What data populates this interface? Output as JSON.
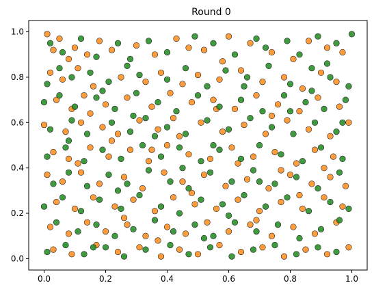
{
  "chart_data": {
    "type": "scatter",
    "title": "Round 0",
    "xlabel": "",
    "ylabel": "",
    "xlim": [
      -0.05,
      1.05
    ],
    "ylim": [
      -0.05,
      1.05
    ],
    "xticks": [
      "0.0",
      "0.2",
      "0.4",
      "0.6",
      "0.8",
      "1.0"
    ],
    "yticks": [
      "0.0",
      "0.2",
      "0.4",
      "0.6",
      "0.8",
      "1.0"
    ],
    "grid": false,
    "legend": false,
    "series": [
      {
        "color": "#ff8c1a",
        "points": [
          [
            0.01,
            0.99
          ],
          [
            0.03,
            0.92
          ],
          [
            0.05,
            0.97
          ],
          [
            0.08,
            0.88
          ],
          [
            0.1,
            0.93
          ],
          [
            0.14,
            0.9
          ],
          [
            0.18,
            0.96
          ],
          [
            0.22,
            0.92
          ],
          [
            0.3,
            0.94
          ],
          [
            0.36,
            0.9
          ],
          [
            0.43,
            0.97
          ],
          [
            0.47,
            0.93
          ],
          [
            0.52,
            0.92
          ],
          [
            0.6,
            0.98
          ],
          [
            0.67,
            0.95
          ],
          [
            0.74,
            0.91
          ],
          [
            0.81,
            0.88
          ],
          [
            0.86,
            0.96
          ],
          [
            0.92,
            0.93
          ],
          [
            0.97,
            0.91
          ],
          [
            0.02,
            0.82
          ],
          [
            0.06,
            0.79
          ],
          [
            0.11,
            0.84
          ],
          [
            0.16,
            0.76
          ],
          [
            0.25,
            0.8
          ],
          [
            0.33,
            0.78
          ],
          [
            0.38,
            0.82
          ],
          [
            0.45,
            0.77
          ],
          [
            0.5,
            0.81
          ],
          [
            0.57,
            0.79
          ],
          [
            0.64,
            0.83
          ],
          [
            0.71,
            0.78
          ],
          [
            0.78,
            0.8
          ],
          [
            0.84,
            0.75
          ],
          [
            0.9,
            0.82
          ],
          [
            0.95,
            0.78
          ],
          [
            0.04,
            0.7
          ],
          [
            0.09,
            0.66
          ],
          [
            0.13,
            0.72
          ],
          [
            0.2,
            0.68
          ],
          [
            0.27,
            0.71
          ],
          [
            0.35,
            0.67
          ],
          [
            0.41,
            0.73
          ],
          [
            0.48,
            0.69
          ],
          [
            0.55,
            0.7
          ],
          [
            0.62,
            0.66
          ],
          [
            0.69,
            0.72
          ],
          [
            0.76,
            0.68
          ],
          [
            0.83,
            0.65
          ],
          [
            0.89,
            0.71
          ],
          [
            0.96,
            0.67
          ],
          [
            0.0,
            0.59
          ],
          [
            0.07,
            0.56
          ],
          [
            0.12,
            0.6
          ],
          [
            0.19,
            0.58
          ],
          [
            0.24,
            0.55
          ],
          [
            0.31,
            0.61
          ],
          [
            0.37,
            0.57
          ],
          [
            0.44,
            0.54
          ],
          [
            0.51,
            0.6
          ],
          [
            0.58,
            0.56
          ],
          [
            0.65,
            0.59
          ],
          [
            0.72,
            0.55
          ],
          [
            0.79,
            0.61
          ],
          [
            0.86,
            0.57
          ],
          [
            0.93,
            0.54
          ],
          [
            0.99,
            0.6
          ],
          [
            0.03,
            0.47
          ],
          [
            0.08,
            0.44
          ],
          [
            0.15,
            0.49
          ],
          [
            0.21,
            0.45
          ],
          [
            0.28,
            0.48
          ],
          [
            0.34,
            0.43
          ],
          [
            0.4,
            0.5
          ],
          [
            0.47,
            0.46
          ],
          [
            0.54,
            0.44
          ],
          [
            0.61,
            0.49
          ],
          [
            0.68,
            0.45
          ],
          [
            0.75,
            0.47
          ],
          [
            0.82,
            0.42
          ],
          [
            0.88,
            0.48
          ],
          [
            0.94,
            0.45
          ],
          [
            0.01,
            0.37
          ],
          [
            0.06,
            0.34
          ],
          [
            0.12,
            0.38
          ],
          [
            0.18,
            0.33
          ],
          [
            0.26,
            0.36
          ],
          [
            0.32,
            0.31
          ],
          [
            0.39,
            0.38
          ],
          [
            0.45,
            0.34
          ],
          [
            0.52,
            0.37
          ],
          [
            0.59,
            0.32
          ],
          [
            0.66,
            0.35
          ],
          [
            0.73,
            0.31
          ],
          [
            0.8,
            0.37
          ],
          [
            0.87,
            0.33
          ],
          [
            0.93,
            0.36
          ],
          [
            0.98,
            0.32
          ],
          [
            0.04,
            0.25
          ],
          [
            0.1,
            0.22
          ],
          [
            0.16,
            0.27
          ],
          [
            0.23,
            0.23
          ],
          [
            0.29,
            0.26
          ],
          [
            0.36,
            0.21
          ],
          [
            0.42,
            0.27
          ],
          [
            0.49,
            0.24
          ],
          [
            0.56,
            0.22
          ],
          [
            0.63,
            0.26
          ],
          [
            0.7,
            0.21
          ],
          [
            0.77,
            0.25
          ],
          [
            0.84,
            0.22
          ],
          [
            0.91,
            0.27
          ],
          [
            0.97,
            0.23
          ],
          [
            0.02,
            0.14
          ],
          [
            0.08,
            0.11
          ],
          [
            0.14,
            0.16
          ],
          [
            0.2,
            0.12
          ],
          [
            0.27,
            0.15
          ],
          [
            0.33,
            0.1
          ],
          [
            0.4,
            0.14
          ],
          [
            0.46,
            0.11
          ],
          [
            0.53,
            0.16
          ],
          [
            0.6,
            0.12
          ],
          [
            0.67,
            0.15
          ],
          [
            0.74,
            0.1
          ],
          [
            0.81,
            0.14
          ],
          [
            0.88,
            0.11
          ],
          [
            0.95,
            0.16
          ],
          [
            0.03,
            0.04
          ],
          [
            0.09,
            0.02
          ],
          [
            0.17,
            0.06
          ],
          [
            0.24,
            0.03
          ],
          [
            0.31,
            0.05
          ],
          [
            0.38,
            0.01
          ],
          [
            0.44,
            0.04
          ],
          [
            0.5,
            0.02
          ],
          [
            0.57,
            0.06
          ],
          [
            0.64,
            0.03
          ],
          [
            0.71,
            0.05
          ],
          [
            0.78,
            0.01
          ],
          [
            0.85,
            0.04
          ],
          [
            0.92,
            0.02
          ],
          [
            0.99,
            0.05
          ],
          [
            0.15,
            0.64
          ],
          [
            0.22,
            0.52
          ],
          [
            0.35,
            0.48
          ],
          [
            0.42,
            0.62
          ],
          [
            0.56,
            0.66
          ],
          [
            0.63,
            0.42
          ],
          [
            0.77,
            0.39
          ],
          [
            0.26,
            0.18
          ],
          [
            0.48,
            0.29
          ],
          [
            0.69,
            0.17
          ],
          [
            0.83,
            0.28
          ],
          [
            0.11,
            0.42
          ],
          [
            0.58,
            0.87
          ],
          [
            0.74,
            0.63
          ],
          [
            0.91,
            0.4
          ],
          [
            0.37,
            0.08
          ]
        ]
      },
      {
        "color": "#1f8a1f",
        "points": [
          [
            0.02,
            0.95
          ],
          [
            0.06,
            0.91
          ],
          [
            0.12,
            0.97
          ],
          [
            0.17,
            0.89
          ],
          [
            0.24,
            0.95
          ],
          [
            0.28,
            0.88
          ],
          [
            0.34,
            0.96
          ],
          [
            0.4,
            0.91
          ],
          [
            0.49,
            0.98
          ],
          [
            0.55,
            0.95
          ],
          [
            0.62,
            0.9
          ],
          [
            0.69,
            0.97
          ],
          [
            0.72,
            0.93
          ],
          [
            0.79,
            0.96
          ],
          [
            0.83,
            0.9
          ],
          [
            0.89,
            0.98
          ],
          [
            0.95,
            0.95
          ],
          [
            1.0,
            0.99
          ],
          [
            0.01,
            0.77
          ],
          [
            0.05,
            0.84
          ],
          [
            0.09,
            0.8
          ],
          [
            0.15,
            0.82
          ],
          [
            0.21,
            0.78
          ],
          [
            0.27,
            0.85
          ],
          [
            0.31,
            0.81
          ],
          [
            0.4,
            0.79
          ],
          [
            0.46,
            0.84
          ],
          [
            0.53,
            0.76
          ],
          [
            0.59,
            0.83
          ],
          [
            0.66,
            0.8
          ],
          [
            0.73,
            0.85
          ],
          [
            0.8,
            0.77
          ],
          [
            0.87,
            0.84
          ],
          [
            0.93,
            0.8
          ],
          [
            0.99,
            0.76
          ],
          [
            0.0,
            0.69
          ],
          [
            0.05,
            0.72
          ],
          [
            0.1,
            0.67
          ],
          [
            0.17,
            0.71
          ],
          [
            0.23,
            0.66
          ],
          [
            0.3,
            0.73
          ],
          [
            0.37,
            0.69
          ],
          [
            0.43,
            0.65
          ],
          [
            0.5,
            0.72
          ],
          [
            0.57,
            0.67
          ],
          [
            0.64,
            0.7
          ],
          [
            0.71,
            0.65
          ],
          [
            0.78,
            0.72
          ],
          [
            0.85,
            0.69
          ],
          [
            0.91,
            0.66
          ],
          [
            0.98,
            0.7
          ],
          [
            0.02,
            0.57
          ],
          [
            0.09,
            0.61
          ],
          [
            0.14,
            0.55
          ],
          [
            0.22,
            0.6
          ],
          [
            0.28,
            0.56
          ],
          [
            0.33,
            0.62
          ],
          [
            0.4,
            0.58
          ],
          [
            0.46,
            0.55
          ],
          [
            0.53,
            0.61
          ],
          [
            0.6,
            0.57
          ],
          [
            0.67,
            0.62
          ],
          [
            0.74,
            0.58
          ],
          [
            0.81,
            0.55
          ],
          [
            0.88,
            0.6
          ],
          [
            0.95,
            0.56
          ],
          [
            0.01,
            0.45
          ],
          [
            0.07,
            0.49
          ],
          [
            0.13,
            0.43
          ],
          [
            0.19,
            0.48
          ],
          [
            0.25,
            0.44
          ],
          [
            0.32,
            0.5
          ],
          [
            0.38,
            0.45
          ],
          [
            0.44,
            0.49
          ],
          [
            0.51,
            0.43
          ],
          [
            0.57,
            0.48
          ],
          [
            0.64,
            0.44
          ],
          [
            0.7,
            0.5
          ],
          [
            0.77,
            0.46
          ],
          [
            0.84,
            0.43
          ],
          [
            0.9,
            0.49
          ],
          [
            0.97,
            0.44
          ],
          [
            0.03,
            0.33
          ],
          [
            0.08,
            0.38
          ],
          [
            0.14,
            0.32
          ],
          [
            0.21,
            0.37
          ],
          [
            0.27,
            0.33
          ],
          [
            0.34,
            0.39
          ],
          [
            0.41,
            0.34
          ],
          [
            0.47,
            0.31
          ],
          [
            0.54,
            0.38
          ],
          [
            0.61,
            0.34
          ],
          [
            0.68,
            0.39
          ],
          [
            0.75,
            0.33
          ],
          [
            0.82,
            0.36
          ],
          [
            0.89,
            0.31
          ],
          [
            0.96,
            0.38
          ],
          [
            0.0,
            0.23
          ],
          [
            0.06,
            0.27
          ],
          [
            0.12,
            0.21
          ],
          [
            0.18,
            0.26
          ],
          [
            0.25,
            0.22
          ],
          [
            0.31,
            0.28
          ],
          [
            0.38,
            0.23
          ],
          [
            0.44,
            0.2
          ],
          [
            0.51,
            0.26
          ],
          [
            0.58,
            0.24
          ],
          [
            0.65,
            0.28
          ],
          [
            0.72,
            0.23
          ],
          [
            0.79,
            0.27
          ],
          [
            0.86,
            0.21
          ],
          [
            0.93,
            0.25
          ],
          [
            0.99,
            0.22
          ],
          [
            0.04,
            0.16
          ],
          [
            0.11,
            0.12
          ],
          [
            0.17,
            0.15
          ],
          [
            0.23,
            0.1
          ],
          [
            0.29,
            0.13
          ],
          [
            0.36,
            0.17
          ],
          [
            0.42,
            0.12
          ],
          [
            0.49,
            0.15
          ],
          [
            0.55,
            0.1
          ],
          [
            0.62,
            0.16
          ],
          [
            0.69,
            0.12
          ],
          [
            0.76,
            0.15
          ],
          [
            0.83,
            0.09
          ],
          [
            0.9,
            0.13
          ],
          [
            0.96,
            0.17
          ],
          [
            0.01,
            0.03
          ],
          [
            0.07,
            0.06
          ],
          [
            0.13,
            0.02
          ],
          [
            0.2,
            0.05
          ],
          [
            0.26,
            0.01
          ],
          [
            0.33,
            0.04
          ],
          [
            0.41,
            0.06
          ],
          [
            0.47,
            0.02
          ],
          [
            0.54,
            0.05
          ],
          [
            0.61,
            0.01
          ],
          [
            0.68,
            0.04
          ],
          [
            0.75,
            0.06
          ],
          [
            0.82,
            0.02
          ],
          [
            0.89,
            0.05
          ],
          [
            0.95,
            0.03
          ],
          [
            0.19,
            0.74
          ],
          [
            0.36,
            0.54
          ],
          [
            0.55,
            0.5
          ],
          [
            0.65,
            0.76
          ],
          [
            0.8,
            0.65
          ],
          [
            0.45,
            0.4
          ],
          [
            0.24,
            0.3
          ],
          [
            0.7,
            0.34
          ],
          [
            0.92,
            0.86
          ],
          [
            0.16,
            0.05
          ],
          [
            0.52,
            0.09
          ],
          [
            0.87,
            0.74
          ],
          [
            0.29,
            0.63
          ],
          [
            0.6,
            0.19
          ],
          [
            0.97,
            0.6
          ],
          [
            0.08,
            0.52
          ]
        ]
      }
    ]
  }
}
